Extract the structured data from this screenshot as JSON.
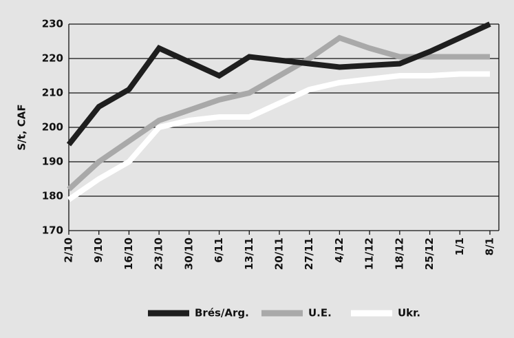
{
  "chart_data": {
    "type": "line",
    "y_label": "S/t, CAF",
    "categories": [
      "2/10",
      "9/10",
      "16/10",
      "23/10",
      "30/10",
      "6/11",
      "13/11",
      "20/11",
      "27/11",
      "4/12",
      "11/12",
      "18/12",
      "25/12",
      "1/1",
      "8/1"
    ],
    "series": [
      {
        "name": "Brés/Arg.",
        "color": "#1e1e1e",
        "values": [
          195,
          206,
          211,
          223,
          219,
          215,
          220.5,
          219.5,
          218.5,
          217.5,
          218,
          218.5,
          222,
          226,
          230
        ]
      },
      {
        "name": "U.E.",
        "color": "#a9a9a9",
        "values": [
          182,
          190,
          196,
          202,
          205,
          208,
          210,
          215,
          220,
          226,
          223,
          220.5,
          220.5,
          220.5,
          220.5
        ]
      },
      {
        "name": "Ukr.",
        "color": "#ffffff",
        "values": [
          179,
          185,
          190,
          200,
          202,
          203,
          203,
          207,
          211,
          213,
          214,
          215,
          215,
          215.5,
          215.5
        ]
      }
    ],
    "ylim": [
      170,
      230
    ],
    "yticks": [
      170,
      180,
      190,
      200,
      210,
      220,
      230
    ],
    "grid": true
  }
}
